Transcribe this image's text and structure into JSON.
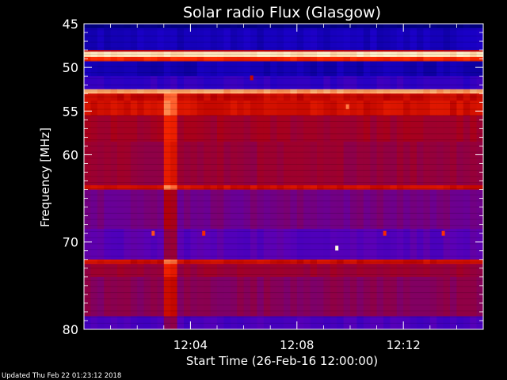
{
  "chart_data": {
    "type": "heatmap",
    "title": "Solar radio Flux (Glasgow)",
    "xlabel": "Start Time (26-Feb-16 12:00:00)",
    "ylabel": "Frequency [MHz]",
    "xlim_minutes": [
      0,
      15
    ],
    "x_ticks": [
      {
        "label": "12:04",
        "value": 4
      },
      {
        "label": "12:08",
        "value": 8
      },
      {
        "label": "12:12",
        "value": 12
      }
    ],
    "ylim": [
      45,
      80
    ],
    "y_ticks": [
      45,
      50,
      55,
      60,
      70,
      80
    ],
    "colormap": [
      "#00007a",
      "#1a00c8",
      "#5a00b8",
      "#8a0050",
      "#b80000",
      "#ff2a00",
      "#ffb070",
      "#ffffe0"
    ],
    "frequency_bands": [
      {
        "from": 45,
        "to": 45.5,
        "level": 0.0
      },
      {
        "from": 45.5,
        "to": 48,
        "level": 0.12
      },
      {
        "from": 48,
        "to": 48.2,
        "level": 0.55
      },
      {
        "from": 48.2,
        "to": 48.8,
        "level": 0.95
      },
      {
        "from": 48.8,
        "to": 49.3,
        "level": 0.7
      },
      {
        "from": 49.3,
        "to": 51,
        "level": 0.1
      },
      {
        "from": 51,
        "to": 52.5,
        "level": 0.2
      },
      {
        "from": 52.5,
        "to": 53.0,
        "level": 0.85
      },
      {
        "from": 53.0,
        "to": 53.8,
        "level": 0.6
      },
      {
        "from": 53.8,
        "to": 55.5,
        "level": 0.62
      },
      {
        "from": 55.5,
        "to": 58.5,
        "level": 0.5
      },
      {
        "from": 58.5,
        "to": 63.5,
        "level": 0.47
      },
      {
        "from": 63.5,
        "to": 64.0,
        "level": 0.62
      },
      {
        "from": 64.0,
        "to": 68.5,
        "level": 0.36
      },
      {
        "from": 68.5,
        "to": 72.0,
        "level": 0.28
      },
      {
        "from": 72.0,
        "to": 72.5,
        "level": 0.62
      },
      {
        "from": 72.5,
        "to": 74.0,
        "level": 0.48
      },
      {
        "from": 74.0,
        "to": 78.5,
        "level": 0.42
      },
      {
        "from": 78.5,
        "to": 80,
        "level": 0.25
      }
    ],
    "burst": {
      "start_minute": 3.0,
      "end_minute": 3.5,
      "freq_from": 53,
      "freq_to": 80,
      "boost": 0.18
    },
    "hot_spots": [
      {
        "minute": 9.5,
        "freq": 70.7,
        "level": 1.0
      },
      {
        "minute": 9.9,
        "freq": 54.5,
        "level": 0.8
      },
      {
        "minute": 6.3,
        "freq": 51.2,
        "level": 0.6
      },
      {
        "minute": 2.6,
        "freq": 69.0,
        "level": 0.75
      },
      {
        "minute": 4.5,
        "freq": 69.0,
        "level": 0.7
      },
      {
        "minute": 11.3,
        "freq": 69.0,
        "level": 0.7
      },
      {
        "minute": 13.5,
        "freq": 69.0,
        "level": 0.72
      }
    ]
  },
  "footer": {
    "updated": "Updated Thu Feb 22 01:23:12 2018"
  }
}
